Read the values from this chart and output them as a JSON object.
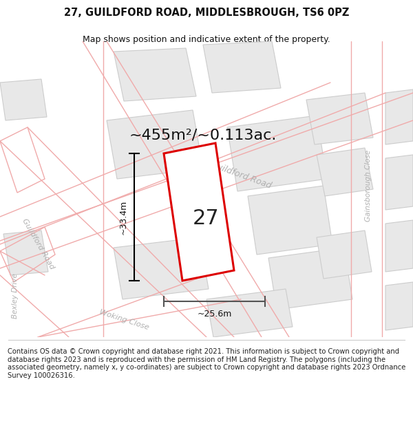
{
  "title": "27, GUILDFORD ROAD, MIDDLESBROUGH, TS6 0PZ",
  "subtitle": "Map shows position and indicative extent of the property.",
  "footer": "Contains OS data © Crown copyright and database right 2021. This information is subject to Crown copyright and database rights 2023 and is reproduced with the permission of HM Land Registry. The polygons (including the associated geometry, namely x, y co-ordinates) are subject to Crown copyright and database rights 2023 Ordnance Survey 100026316.",
  "area_label": "~455m²/~0.113ac.",
  "house_number": "27",
  "dim_height": "~33.4m",
  "dim_width": "~25.6m",
  "bg_color": "#ffffff",
  "map_bg": "#ffffff",
  "road_outline_color": "#f0aaaa",
  "block_fill": "#e8e8e8",
  "block_edge": "#cccccc",
  "red_plot_color": "#dd0000",
  "street_label_color": "#b0b0b0",
  "title_fontsize": 10.5,
  "subtitle_fontsize": 9,
  "footer_fontsize": 7.2,
  "area_fontsize": 16,
  "number_fontsize": 22,
  "dim_fontsize": 9
}
